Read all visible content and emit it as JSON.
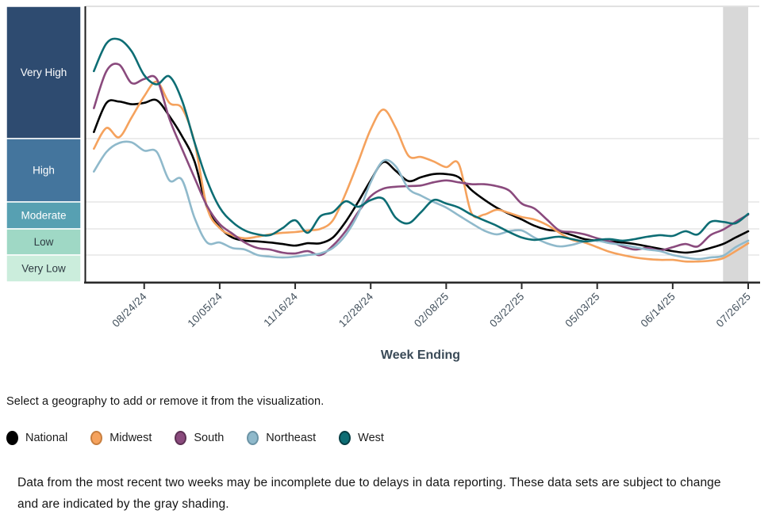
{
  "instruction": "Select a geography to add or remove it from the visualization.",
  "disclaimer": "Data from the most recent two weeks may be incomplete due to delays in data reporting. These data sets are subject to change and are indicated by the gray shading.",
  "chart_data": {
    "type": "line",
    "weeks": 53,
    "x_axis": {
      "title": "Week Ending",
      "ticks": [
        {
          "label": "08/24/24",
          "week": 4
        },
        {
          "label": "10/05/24",
          "week": 10
        },
        {
          "label": "11/16/24",
          "week": 16
        },
        {
          "label": "12/28/24",
          "week": 22
        },
        {
          "label": "02/08/25",
          "week": 28
        },
        {
          "label": "03/22/25",
          "week": 34
        },
        {
          "label": "05/03/25",
          "week": 40
        },
        {
          "label": "06/14/25",
          "week": 46
        },
        {
          "label": "07/26/25",
          "week": 52
        }
      ]
    },
    "y_axis": {
      "bands": [
        {
          "label": "Very High",
          "color": "#2e4b70",
          "text_color": "#ffffff",
          "level_min": 4,
          "level_max": 5
        },
        {
          "label": "High",
          "color": "#44759d",
          "text_color": "#ffffff",
          "level_min": 3,
          "level_max": 4
        },
        {
          "label": "Moderate",
          "color": "#57a0b2",
          "text_color": "#ffffff",
          "level_min": 2,
          "level_max": 3
        },
        {
          "label": "Low",
          "color": "#9fd8c5",
          "text_color": "#2e3b42",
          "level_min": 1,
          "level_max": 2
        },
        {
          "label": "Very Low",
          "color": "#cbeddc",
          "text_color": "#2e3b42",
          "level_min": 0,
          "level_max": 1
        }
      ]
    },
    "recent_data_shading": {
      "weeks": 2,
      "color": "#d8d8d8"
    },
    "series": [
      {
        "name": "National",
        "color": "#000000",
        "marker_border": "#000000",
        "values": [
          4.05,
          4.27,
          4.28,
          4.26,
          4.27,
          4.29,
          4.17,
          4.02,
          3.64,
          2.79,
          2.06,
          1.67,
          1.55,
          1.52,
          1.48,
          1.42,
          1.36,
          1.45,
          1.45,
          1.67,
          2.26,
          3.0,
          3.34,
          3.63,
          3.49,
          3.33,
          3.39,
          3.44,
          3.44,
          3.39,
          3.19,
          3.04,
          2.79,
          2.56,
          2.35,
          2.12,
          1.97,
          1.91,
          1.76,
          1.61,
          1.55,
          1.52,
          1.48,
          1.42,
          1.33,
          1.24,
          1.15,
          1.09,
          1.15,
          1.27,
          1.42,
          1.67,
          1.91
        ]
      },
      {
        "name": "Midwest",
        "color": "#f5a25d",
        "marker_border": "#c87f3f",
        "values": [
          3.84,
          4.08,
          4.01,
          4.16,
          4.32,
          4.43,
          4.27,
          4.23,
          3.94,
          2.79,
          2.03,
          1.76,
          1.64,
          1.7,
          1.79,
          1.85,
          1.88,
          1.94,
          2.0,
          2.32,
          3.13,
          3.63,
          4.07,
          4.22,
          4.08,
          3.73,
          3.71,
          3.64,
          3.55,
          3.6,
          2.59,
          2.53,
          2.71,
          2.59,
          2.44,
          2.35,
          2.15,
          1.85,
          1.58,
          1.48,
          1.3,
          1.12,
          1.0,
          0.91,
          0.85,
          0.82,
          0.82,
          0.76,
          0.76,
          0.79,
          0.88,
          1.15,
          1.45
        ]
      },
      {
        "name": "South",
        "color": "#8a4a7d",
        "marker_border": "#5d3154",
        "values": [
          4.23,
          4.51,
          4.56,
          4.42,
          4.45,
          4.45,
          4.15,
          3.84,
          3.38,
          2.85,
          2.18,
          1.82,
          1.48,
          1.27,
          1.21,
          1.09,
          1.06,
          1.15,
          1.0,
          1.36,
          1.91,
          2.62,
          3.09,
          3.21,
          3.24,
          3.25,
          3.26,
          3.31,
          3.34,
          3.31,
          3.28,
          3.28,
          3.25,
          3.18,
          2.94,
          2.76,
          2.35,
          1.94,
          1.88,
          1.79,
          1.64,
          1.52,
          1.33,
          1.21,
          1.27,
          1.18,
          1.3,
          1.42,
          1.33,
          1.76,
          1.97,
          2.26,
          2.53
        ]
      },
      {
        "name": "Northeast",
        "color": "#8fb9cb",
        "marker_border": "#6b93a5",
        "values": [
          3.48,
          3.79,
          3.93,
          3.94,
          3.81,
          3.79,
          3.34,
          3.35,
          2.41,
          1.48,
          1.48,
          1.27,
          1.21,
          1.0,
          0.94,
          0.91,
          0.94,
          1.0,
          1.06,
          1.27,
          1.76,
          2.56,
          3.31,
          3.65,
          3.56,
          3.21,
          3.1,
          3.0,
          2.79,
          2.5,
          2.21,
          1.94,
          1.79,
          1.91,
          1.94,
          1.67,
          1.45,
          1.33,
          1.39,
          1.52,
          1.55,
          1.45,
          1.39,
          1.3,
          1.21,
          1.15,
          1.0,
          0.91,
          0.85,
          0.91,
          0.97,
          1.3,
          1.55
        ]
      },
      {
        "name": "West",
        "color": "#0d6d74",
        "marker_border": "#063e44",
        "values": [
          4.51,
          4.72,
          4.75,
          4.66,
          4.48,
          4.41,
          4.47,
          4.29,
          3.94,
          3.34,
          2.79,
          2.26,
          1.94,
          1.79,
          1.76,
          2.03,
          2.32,
          1.85,
          2.47,
          2.62,
          3.01,
          2.82,
          3.03,
          3.05,
          2.41,
          2.21,
          2.62,
          3.03,
          2.94,
          2.79,
          2.53,
          2.32,
          2.12,
          1.88,
          1.67,
          1.58,
          1.64,
          1.7,
          1.61,
          1.52,
          1.58,
          1.61,
          1.55,
          1.61,
          1.7,
          1.76,
          1.73,
          1.91,
          1.79,
          2.26,
          2.26,
          2.21,
          2.56
        ]
      }
    ]
  }
}
